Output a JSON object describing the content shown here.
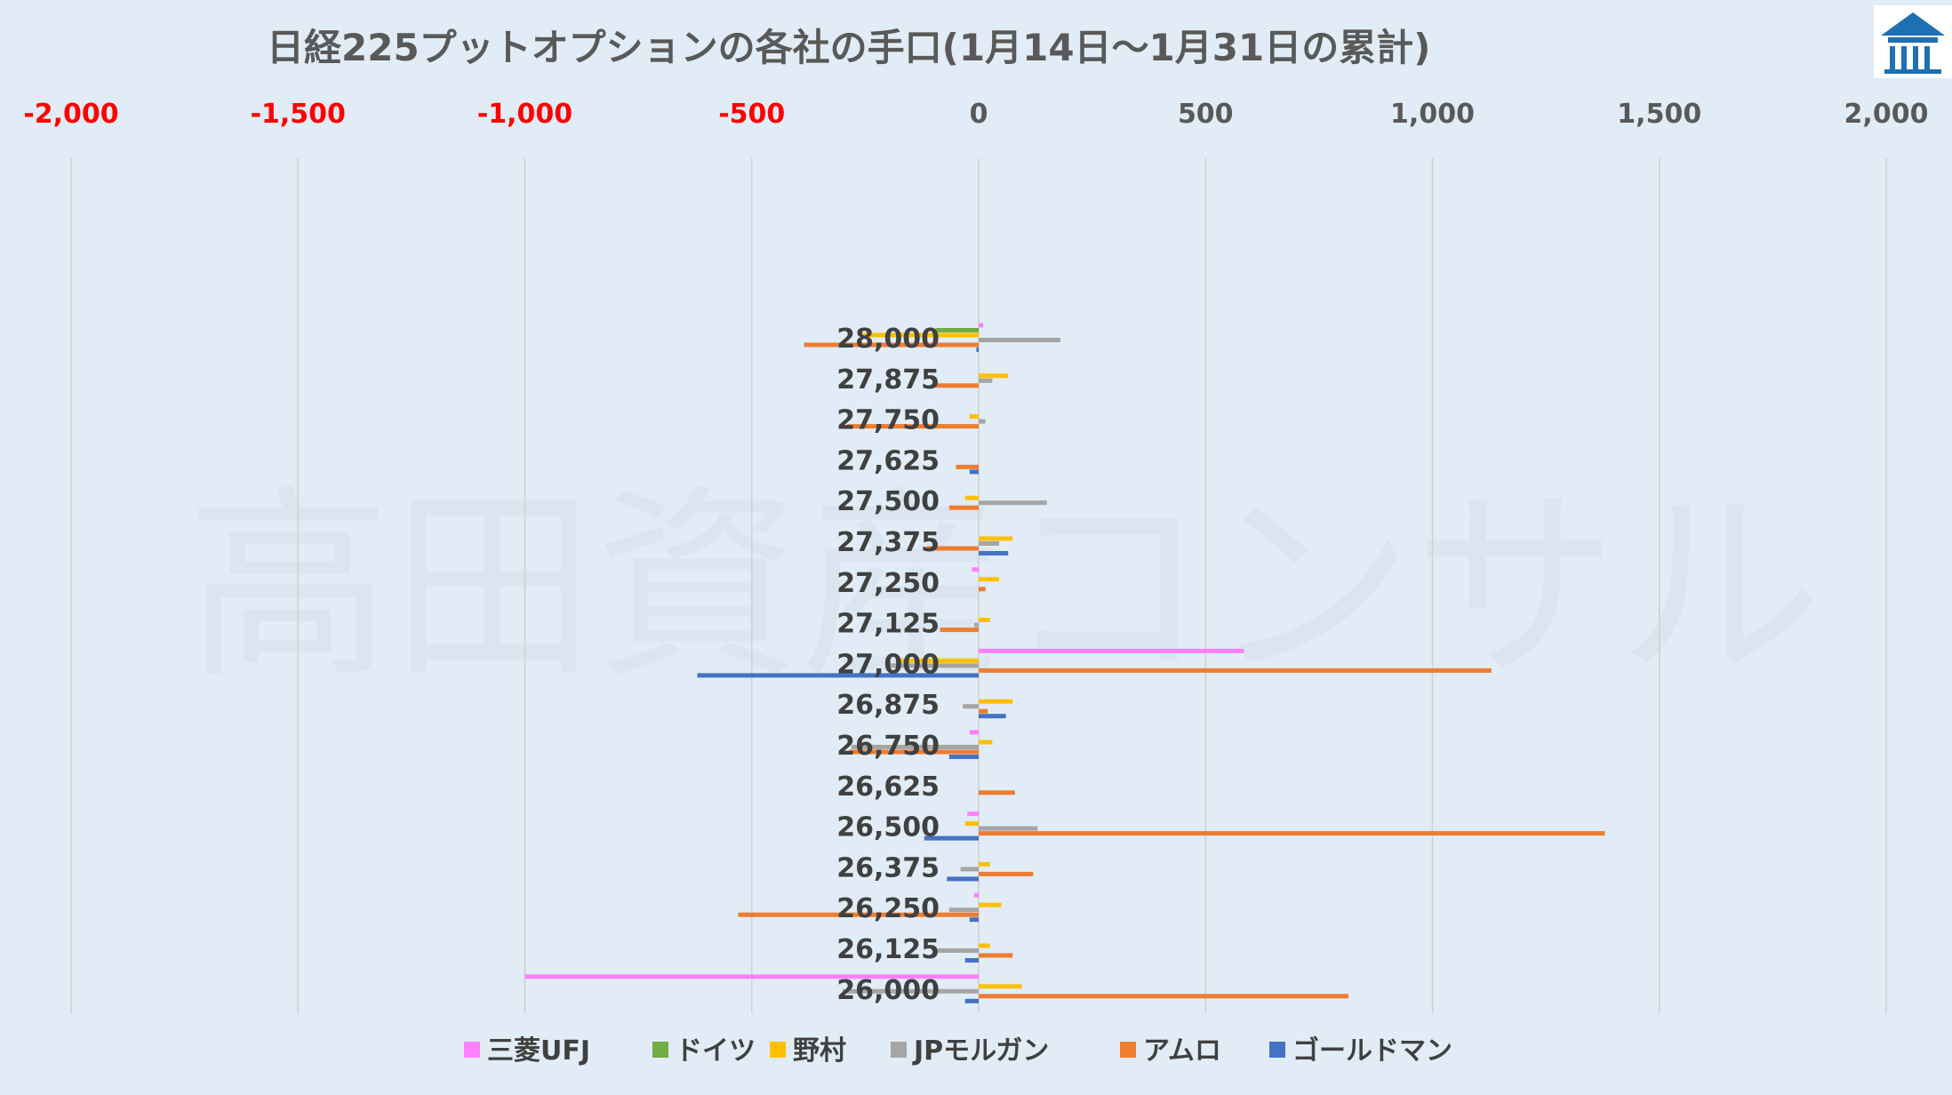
{
  "chart_data": {
    "type": "bar",
    "orientation": "horizontal",
    "title": "日経225プットオプションの各社の手口(1月14日～1月31日の累計)",
    "watermark": "高田資産コンサル",
    "xlim": [
      -2000,
      2000
    ],
    "xticks": [
      -2000,
      -1500,
      -1000,
      -500,
      0,
      500,
      1000,
      1500,
      2000
    ],
    "xtick_labels": [
      "-2,000",
      "-1,500",
      "-1,000",
      "-500",
      "0",
      "500",
      "1,000",
      "1,500",
      "2,000"
    ],
    "negative_tick_color": "#ff0000",
    "positive_tick_color": "#595959",
    "grid": true,
    "legend_position": "bottom",
    "categories": [
      "28,000",
      "27,875",
      "27,750",
      "27,625",
      "27,500",
      "27,375",
      "27,250",
      "27,125",
      "27,000",
      "26,875",
      "26,750",
      "26,625",
      "26,500",
      "26,375",
      "26,250",
      "26,125",
      "26,000"
    ],
    "series": [
      {
        "name": "三菱UFJ",
        "color": "#ff80ff",
        "values": [
          10,
          0,
          0,
          0,
          0,
          0,
          -15,
          0,
          585,
          0,
          -20,
          0,
          -25,
          0,
          -10,
          0,
          -1000
        ]
      },
      {
        "name": "ドイツ",
        "color": "#70ad47",
        "values": [
          -95,
          0,
          0,
          0,
          0,
          0,
          0,
          0,
          0,
          0,
          0,
          0,
          0,
          0,
          0,
          0,
          0
        ]
      },
      {
        "name": "野村",
        "color": "#ffc000",
        "values": [
          -260,
          65,
          -20,
          0,
          -30,
          75,
          45,
          25,
          -180,
          75,
          30,
          0,
          -30,
          25,
          50,
          25,
          95
        ]
      },
      {
        "name": "JPモルガン",
        "color": "#a5a5a5",
        "values": [
          180,
          30,
          15,
          0,
          150,
          45,
          0,
          -10,
          -200,
          -35,
          -280,
          0,
          130,
          -40,
          -65,
          -90,
          -300
        ]
      },
      {
        "name": "アムロ",
        "color": "#ed7d31",
        "values": [
          -385,
          -95,
          -290,
          -50,
          -65,
          -115,
          15,
          -85,
          1130,
          20,
          -285,
          80,
          1380,
          120,
          -530,
          75,
          815
        ]
      },
      {
        "name": "ゴールドマン",
        "color": "#4472c4",
        "values": [
          -5,
          0,
          0,
          -20,
          0,
          65,
          0,
          0,
          -620,
          60,
          -65,
          0,
          -120,
          -70,
          -20,
          -30,
          -30
        ]
      }
    ]
  },
  "logo": {
    "name": "roof-logo",
    "color": "#1f6fb4"
  }
}
